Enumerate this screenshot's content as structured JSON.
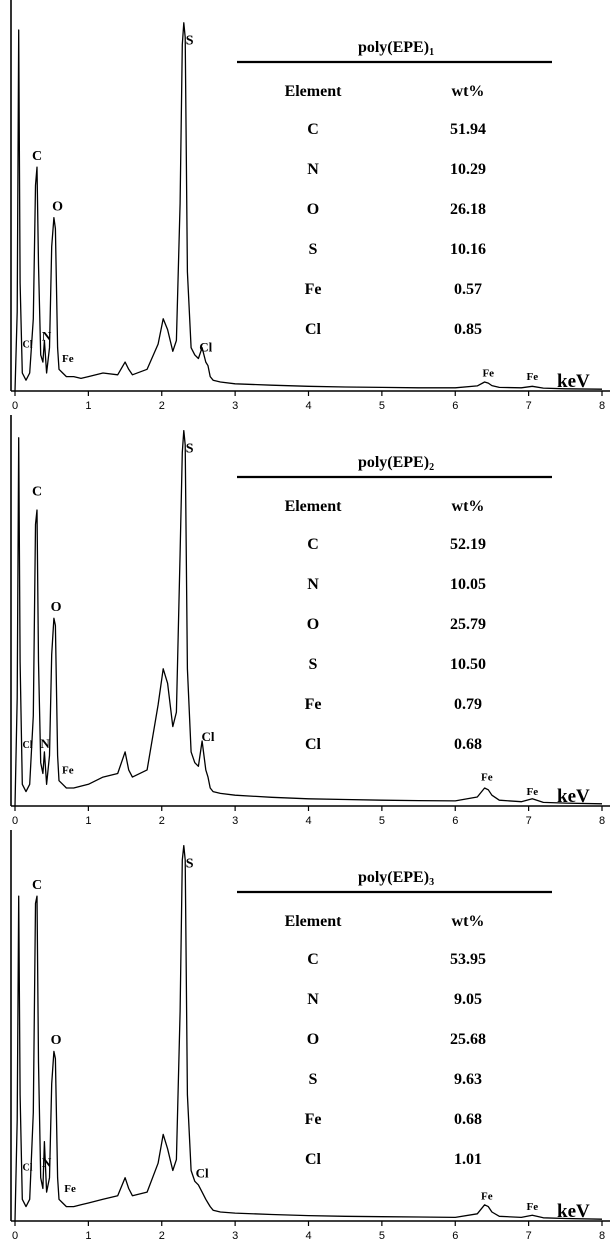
{
  "chart_data": [
    {
      "type": "line",
      "x_unit": "keV",
      "xlim": [
        0,
        8
      ],
      "x_ticks": [
        "0",
        "1",
        "2",
        "3",
        "4",
        "5",
        "6",
        "7",
        "8"
      ],
      "spectrum": {
        "x": [
          0,
          0.03,
          0.05,
          0.07,
          0.1,
          0.15,
          0.2,
          0.25,
          0.28,
          0.3,
          0.32,
          0.35,
          0.38,
          0.4,
          0.43,
          0.47,
          0.5,
          0.53,
          0.55,
          0.58,
          0.6,
          0.65,
          0.7,
          0.8,
          0.9,
          1,
          1.2,
          1.4,
          1.5,
          1.55,
          1.6,
          1.8,
          1.95,
          2.02,
          2.08,
          2.15,
          2.2,
          2.25,
          2.28,
          2.3,
          2.32,
          2.35,
          2.4,
          2.45,
          2.5,
          2.55,
          2.6,
          2.63,
          2.66,
          2.7,
          2.8,
          3,
          3.5,
          4,
          4.5,
          5,
          5.5,
          6,
          6.3,
          6.4,
          6.45,
          6.5,
          6.6,
          6.9,
          7.05,
          7.2,
          7.5,
          8
        ],
        "y": [
          0,
          22,
          100,
          30,
          5,
          3,
          5,
          20,
          57,
          62,
          35,
          10,
          8,
          14,
          5,
          12,
          40,
          48,
          45,
          12,
          6,
          5,
          4,
          4,
          3.5,
          4,
          5,
          4.5,
          8,
          6,
          4.5,
          6,
          13,
          20,
          17,
          11,
          14,
          52,
          96,
          102,
          98,
          33,
          12,
          10,
          9,
          12,
          8,
          7,
          4,
          3,
          2.5,
          2,
          1.6,
          1.3,
          1.1,
          1,
          0.9,
          0.9,
          1.4,
          2.5,
          2.2,
          1.5,
          1,
          0.9,
          1.3,
          0.8,
          0.6,
          0.5
        ]
      },
      "peak_labels": [
        {
          "label": "S",
          "x": 2.38,
          "y": 96,
          "size": 14
        },
        {
          "label": "C",
          "x": 0.3,
          "y": 64,
          "size": 14
        },
        {
          "label": "O",
          "x": 0.58,
          "y": 50,
          "size": 14
        },
        {
          "label": "Cl",
          "x": 0.17,
          "y": 12,
          "size": 10
        },
        {
          "label": "N",
          "x": 0.43,
          "y": 14,
          "size": 13
        },
        {
          "label": "Fe",
          "x": 0.72,
          "y": 8,
          "size": 11
        },
        {
          "label": "Cl",
          "x": 2.6,
          "y": 11,
          "size": 13
        },
        {
          "label": "Fe",
          "x": 6.45,
          "y": 4,
          "size": 11
        },
        {
          "label": "Fe",
          "x": 7.05,
          "y": 3,
          "size": 11
        }
      ],
      "table": {
        "title_main": "poly(EPE)",
        "title_sub": "1",
        "col_headers": [
          "Element",
          "wt%"
        ],
        "rows": [
          [
            "C",
            "51.94"
          ],
          [
            "N",
            "10.29"
          ],
          [
            "O",
            "26.18"
          ],
          [
            "S",
            "10.16"
          ],
          [
            "Fe",
            "0.57"
          ],
          [
            "Cl",
            "0.85"
          ]
        ]
      }
    },
    {
      "type": "line",
      "x_unit": "keV",
      "xlim": [
        0,
        8
      ],
      "x_ticks": [
        "0",
        "1",
        "2",
        "3",
        "4",
        "5",
        "6",
        "7",
        "8"
      ],
      "spectrum": {
        "x": [
          0,
          0.03,
          0.05,
          0.07,
          0.1,
          0.15,
          0.2,
          0.25,
          0.28,
          0.3,
          0.32,
          0.35,
          0.38,
          0.4,
          0.43,
          0.47,
          0.5,
          0.53,
          0.55,
          0.58,
          0.6,
          0.65,
          0.7,
          0.8,
          0.9,
          1,
          1.2,
          1.4,
          1.5,
          1.55,
          1.6,
          1.8,
          1.95,
          2.02,
          2.08,
          2.15,
          2.2,
          2.25,
          2.28,
          2.3,
          2.32,
          2.35,
          2.4,
          2.45,
          2.5,
          2.55,
          2.6,
          2.63,
          2.66,
          2.7,
          2.8,
          3,
          3.5,
          4,
          4.5,
          5,
          5.5,
          6,
          6.3,
          6.4,
          6.45,
          6.5,
          6.6,
          6.9,
          7.05,
          7.2,
          7.5,
          8
        ],
        "y": [
          0,
          30,
          102,
          40,
          6,
          4,
          6,
          25,
          78,
          82,
          40,
          12,
          9,
          15,
          6,
          14,
          42,
          52,
          50,
          14,
          7,
          6,
          5,
          5,
          5.5,
          6,
          8,
          9,
          15,
          10,
          8,
          10,
          28,
          38,
          34,
          22,
          26,
          70,
          98,
          104,
          100,
          38,
          15,
          12,
          11,
          18,
          10,
          8,
          5,
          4,
          3.5,
          3,
          2.4,
          2,
          1.8,
          1.6,
          1.5,
          1.4,
          2.5,
          5,
          4.5,
          3,
          1.6,
          1.2,
          2,
          1,
          0.8,
          0.6
        ]
      },
      "peak_labels": [
        {
          "label": "S",
          "x": 2.38,
          "y": 98,
          "size": 14
        },
        {
          "label": "C",
          "x": 0.3,
          "y": 86,
          "size": 14
        },
        {
          "label": "O",
          "x": 0.56,
          "y": 54,
          "size": 14
        },
        {
          "label": "Cl",
          "x": 0.17,
          "y": 16,
          "size": 10
        },
        {
          "label": "N",
          "x": 0.41,
          "y": 16,
          "size": 13
        },
        {
          "label": "Fe",
          "x": 0.72,
          "y": 9,
          "size": 11
        },
        {
          "label": "Cl",
          "x": 2.63,
          "y": 18,
          "size": 13
        },
        {
          "label": "Fe",
          "x": 6.43,
          "y": 7,
          "size": 11
        },
        {
          "label": "Fe",
          "x": 7.05,
          "y": 3,
          "size": 11
        }
      ],
      "table": {
        "title_main": "poly(EPE)",
        "title_sub": "2",
        "col_headers": [
          "Element",
          "wt%"
        ],
        "rows": [
          [
            "C",
            "52.19"
          ],
          [
            "N",
            "10.05"
          ],
          [
            "O",
            "25.79"
          ],
          [
            "S",
            "10.50"
          ],
          [
            "Fe",
            "0.79"
          ],
          [
            "Cl",
            "0.68"
          ]
        ]
      }
    },
    {
      "type": "line",
      "x_unit": "keV",
      "xlim": [
        0,
        8
      ],
      "x_ticks": [
        "0",
        "1",
        "2",
        "3",
        "4",
        "5",
        "6",
        "7",
        "8"
      ],
      "spectrum": {
        "x": [
          0,
          0.03,
          0.05,
          0.07,
          0.1,
          0.15,
          0.2,
          0.25,
          0.28,
          0.3,
          0.32,
          0.35,
          0.38,
          0.4,
          0.43,
          0.47,
          0.5,
          0.53,
          0.55,
          0.58,
          0.6,
          0.65,
          0.7,
          0.8,
          0.9,
          1,
          1.2,
          1.4,
          1.5,
          1.55,
          1.6,
          1.8,
          1.95,
          2.02,
          2.08,
          2.15,
          2.2,
          2.25,
          2.28,
          2.3,
          2.32,
          2.35,
          2.4,
          2.45,
          2.5,
          2.55,
          2.6,
          2.63,
          2.66,
          2.7,
          2.8,
          3,
          3.5,
          4,
          4.5,
          5,
          5.5,
          6,
          6.3,
          6.4,
          6.45,
          6.5,
          6.6,
          6.9,
          7.05,
          7.2,
          7.5,
          8
        ],
        "y": [
          0,
          28,
          90,
          35,
          6,
          4,
          6,
          30,
          88,
          90,
          44,
          12,
          9,
          22,
          8,
          12,
          38,
          47,
          45,
          12,
          6,
          5,
          4,
          4,
          4.5,
          5,
          6,
          7,
          12,
          9,
          7,
          8,
          16,
          24,
          20,
          14,
          17,
          58,
          100,
          104,
          100,
          35,
          14,
          11,
          10,
          8,
          6,
          5,
          4,
          3,
          2.5,
          2.2,
          1.8,
          1.5,
          1.3,
          1.2,
          1.1,
          1,
          2,
          4.5,
          4,
          2.5,
          1.3,
          1,
          1.6,
          0.9,
          0.7,
          0.5
        ]
      },
      "peak_labels": [
        {
          "label": "S",
          "x": 2.38,
          "y": 98,
          "size": 14
        },
        {
          "label": "C",
          "x": 0.3,
          "y": 92,
          "size": 14
        },
        {
          "label": "O",
          "x": 0.56,
          "y": 49,
          "size": 14
        },
        {
          "label": "Cl",
          "x": 0.17,
          "y": 14,
          "size": 10
        },
        {
          "label": "N",
          "x": 0.43,
          "y": 15,
          "size": 13
        },
        {
          "label": "Fe",
          "x": 0.75,
          "y": 8,
          "size": 11
        },
        {
          "label": "Cl",
          "x": 2.55,
          "y": 12,
          "size": 13
        },
        {
          "label": "Fe",
          "x": 6.43,
          "y": 6,
          "size": 11
        },
        {
          "label": "Fe",
          "x": 7.05,
          "y": 3,
          "size": 11
        }
      ],
      "table": {
        "title_main": "poly(EPE)",
        "title_sub": "3",
        "col_headers": [
          "Element",
          "wt%"
        ],
        "rows": [
          [
            "C",
            "53.95"
          ],
          [
            "N",
            "9.05"
          ],
          [
            "O",
            "25.68"
          ],
          [
            "S",
            "9.63"
          ],
          [
            "Fe",
            "0.68"
          ],
          [
            "Cl",
            "1.01"
          ]
        ]
      }
    }
  ]
}
